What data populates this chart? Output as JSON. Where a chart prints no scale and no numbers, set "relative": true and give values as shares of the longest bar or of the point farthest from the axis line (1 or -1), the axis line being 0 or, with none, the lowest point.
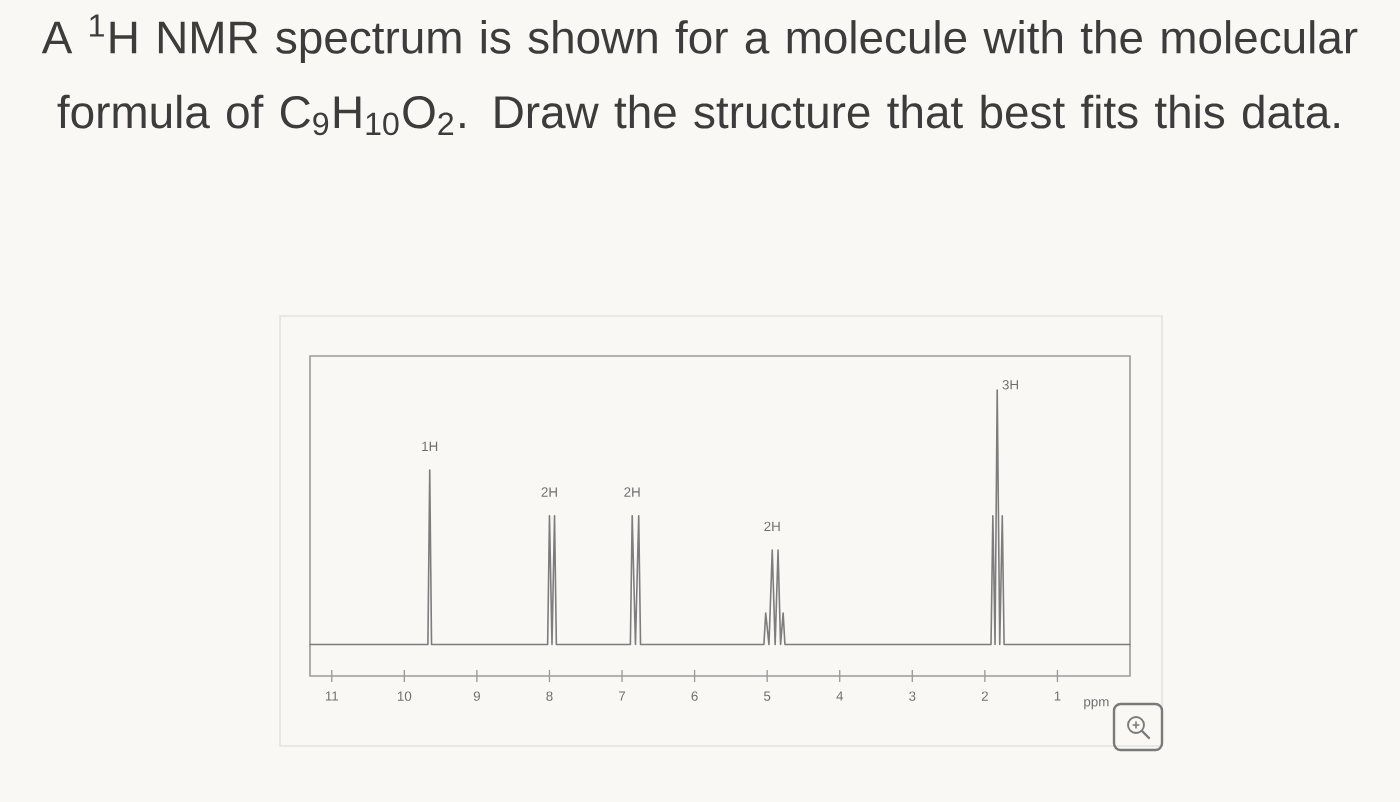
{
  "chart_data": {
    "type": "line",
    "title": "A $^{1}$H NMR spectrum is shown for a molecule with the molecular formula of C$_{9}$H$_{10}$O$_{2}$. Draw the structure that best fits this data.",
    "xlabel": "ppm",
    "relative": true,
    "color": "#7d7d7d",
    "x": [
      11.3,
      9.675,
      9.65,
      9.625,
      8.025,
      8.0,
      7.965,
      7.93,
      7.905,
      6.885,
      6.86,
      6.815,
      6.77,
      6.745,
      5.045,
      5.02,
      4.975,
      4.93,
      4.89,
      4.85,
      4.815,
      4.78,
      4.755,
      1.915,
      1.89,
      1.86,
      1.83,
      1.795,
      1.76,
      1.735,
      0
    ],
    "values": [
      0.11,
      0.11,
      0.72,
      0.11,
      0.11,
      0.56,
      0.11,
      0.56,
      0.11,
      0.11,
      0.56,
      0.11,
      0.56,
      0.11,
      0.11,
      0.22,
      0.11,
      0.44,
      0.11,
      0.44,
      0.11,
      0.22,
      0.11,
      0.11,
      0.56,
      0.11,
      1,
      0.11,
      0.56,
      0.11,
      0.11
    ],
    "xlim": [
      11.3,
      0
    ],
    "xticks": [
      11,
      10,
      9,
      8,
      7,
      6,
      5,
      4,
      3,
      2,
      1
    ],
    "annotations": [
      {
        "text": "1H",
        "x": 9.65,
        "y": 0.72
      },
      {
        "text": "2H",
        "x": 8.0,
        "y": 0.56
      },
      {
        "text": "2H",
        "x": 6.86,
        "y": 0.56
      },
      {
        "text": "2H",
        "x": 4.93,
        "y": 0.44
      },
      {
        "text": "3H",
        "x": 1.83,
        "y": 1
      }
    ]
  }
}
